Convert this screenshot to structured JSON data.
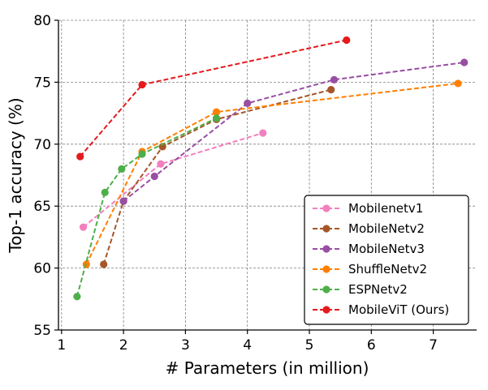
{
  "chart_data": {
    "type": "line",
    "title": "",
    "xlabel": "# Parameters (in million)",
    "ylabel": "Top-1 accuracy (%)",
    "xlim": [
      0.95,
      7.7
    ],
    "ylim": [
      55,
      80
    ],
    "xticks": [
      1,
      2,
      3,
      4,
      5,
      6,
      7
    ],
    "yticks": [
      55,
      60,
      65,
      70,
      75,
      80
    ],
    "grid": true,
    "legend_position": "bottom-right",
    "series": [
      {
        "name": "Mobilenetv1",
        "color": "#f37fbf",
        "x": [
          1.35,
          2.6,
          4.25
        ],
        "y": [
          63.3,
          68.4,
          70.9
        ]
      },
      {
        "name": "MobileNetv2",
        "color": "#a65628",
        "x": [
          1.68,
          2.0,
          2.63,
          3.5,
          5.35
        ],
        "y": [
          60.3,
          65.4,
          69.8,
          72.0,
          74.4
        ]
      },
      {
        "name": "MobileNetv3",
        "color": "#984ea3",
        "x": [
          2.0,
          2.5,
          4.0,
          5.4,
          7.5
        ],
        "y": [
          65.4,
          67.4,
          73.3,
          75.2,
          76.6
        ]
      },
      {
        "name": "ShuffleNetv2",
        "color": "#ff7f00",
        "x": [
          1.4,
          2.3,
          3.5,
          7.4
        ],
        "y": [
          60.3,
          69.4,
          72.6,
          74.9
        ]
      },
      {
        "name": "ESPNetv2",
        "color": "#4daf4a",
        "x": [
          1.25,
          1.7,
          1.97,
          2.3,
          3.5
        ],
        "y": [
          57.7,
          66.1,
          68.0,
          69.2,
          72.1
        ]
      },
      {
        "name": "MobileViT (Ours)",
        "color": "#e41a1c",
        "x": [
          1.3,
          2.3,
          5.6
        ],
        "y": [
          69.0,
          74.8,
          78.4
        ]
      }
    ]
  }
}
